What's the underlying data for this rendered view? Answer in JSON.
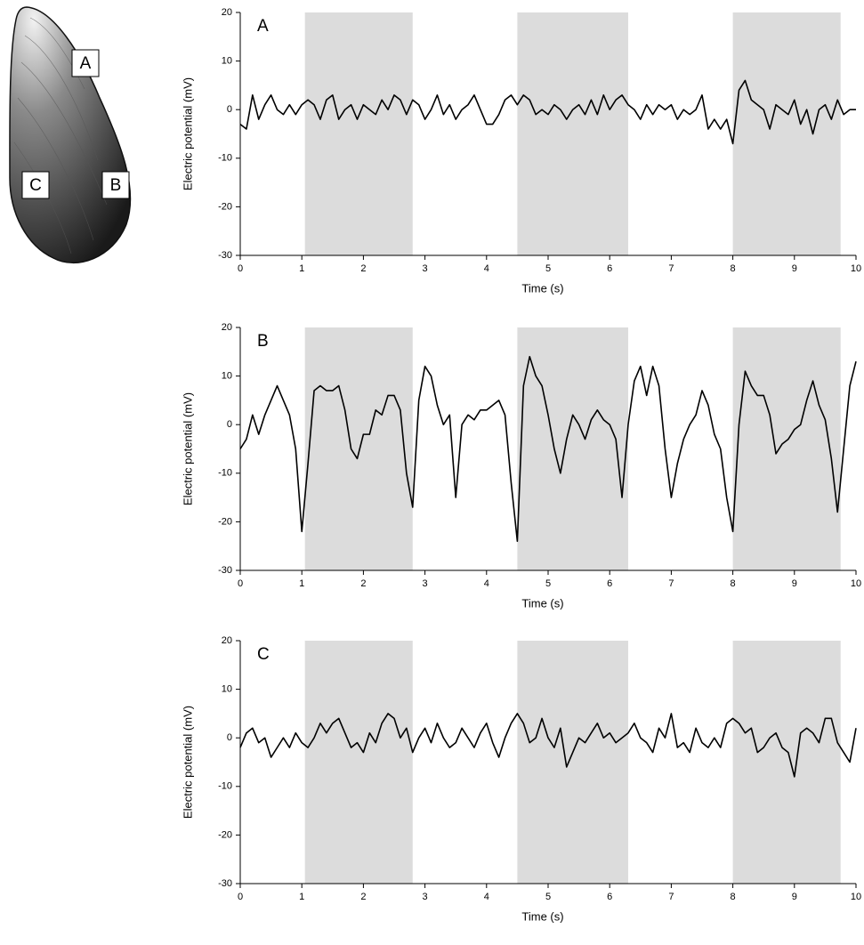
{
  "chart_data": [
    {
      "type": "line",
      "panel_label": "A",
      "xlabel": "Time (s)",
      "ylabel": "Electric potential (mV)",
      "color": "#000000",
      "shade_color": "#dcdcdc",
      "xlim": [
        0,
        10
      ],
      "ylim": [
        -30,
        20
      ],
      "xticks": [
        0,
        1,
        2,
        3,
        4,
        5,
        6,
        7,
        8,
        9,
        10
      ],
      "yticks": [
        -30,
        -20,
        -10,
        0,
        10,
        20
      ],
      "shaded_regions": [
        [
          1.05,
          2.8
        ],
        [
          4.5,
          6.3
        ],
        [
          8.0,
          9.75
        ]
      ],
      "x": [
        0,
        0.1,
        0.2,
        0.3,
        0.4,
        0.5,
        0.6,
        0.7,
        0.8,
        0.9,
        1,
        1.1,
        1.2,
        1.3,
        1.4,
        1.5,
        1.6,
        1.7,
        1.8,
        1.9,
        2,
        2.1,
        2.2,
        2.3,
        2.4,
        2.5,
        2.6,
        2.7,
        2.8,
        2.9,
        3,
        3.1,
        3.2,
        3.3,
        3.4,
        3.5,
        3.6,
        3.7,
        3.8,
        3.9,
        4,
        4.1,
        4.2,
        4.3,
        4.4,
        4.5,
        4.6,
        4.7,
        4.8,
        4.9,
        5,
        5.1,
        5.2,
        5.3,
        5.4,
        5.5,
        5.6,
        5.7,
        5.8,
        5.9,
        6,
        6.1,
        6.2,
        6.3,
        6.4,
        6.5,
        6.6,
        6.7,
        6.8,
        6.9,
        7,
        7.1,
        7.2,
        7.3,
        7.4,
        7.5,
        7.6,
        7.7,
        7.8,
        7.9,
        8,
        8.1,
        8.2,
        8.3,
        8.4,
        8.5,
        8.6,
        8.7,
        8.8,
        8.9,
        9,
        9.1,
        9.2,
        9.3,
        9.4,
        9.5,
        9.6,
        9.7,
        9.8,
        9.9,
        10
      ],
      "values": [
        -3,
        -4,
        3,
        -2,
        1,
        3,
        0,
        -1,
        1,
        -1,
        1,
        2,
        1,
        -2,
        2,
        3,
        -2,
        0,
        1,
        -2,
        1,
        0,
        -1,
        2,
        0,
        3,
        2,
        -1,
        2,
        1,
        -2,
        0,
        3,
        -1,
        1,
        -2,
        0,
        1,
        3,
        0,
        -3,
        -3,
        -1,
        2,
        3,
        1,
        3,
        2,
        -1,
        0,
        -1,
        1,
        0,
        -2,
        0,
        1,
        -1,
        2,
        -1,
        3,
        0,
        2,
        3,
        1,
        0,
        -2,
        1,
        -1,
        1,
        0,
        1,
        -2,
        0,
        -1,
        0,
        3,
        -4,
        -2,
        -4,
        -2,
        -7,
        4,
        6,
        2,
        1,
        0,
        -4,
        1,
        0,
        -1,
        2,
        -3,
        0,
        -5,
        0,
        1,
        -2,
        2,
        -1,
        0,
        0
      ]
    },
    {
      "type": "line",
      "panel_label": "B",
      "xlabel": "Time (s)",
      "ylabel": "Electric potential (mV)",
      "color": "#000000",
      "shade_color": "#dcdcdc",
      "xlim": [
        0,
        10
      ],
      "ylim": [
        -30,
        20
      ],
      "xticks": [
        0,
        1,
        2,
        3,
        4,
        5,
        6,
        7,
        8,
        9,
        10
      ],
      "yticks": [
        -30,
        -20,
        -10,
        0,
        10,
        20
      ],
      "shaded_regions": [
        [
          1.05,
          2.8
        ],
        [
          4.5,
          6.3
        ],
        [
          8.0,
          9.75
        ]
      ],
      "x": [
        0,
        0.1,
        0.2,
        0.3,
        0.4,
        0.5,
        0.6,
        0.7,
        0.8,
        0.9,
        1,
        1.1,
        1.2,
        1.3,
        1.4,
        1.5,
        1.6,
        1.7,
        1.8,
        1.9,
        2,
        2.1,
        2.2,
        2.3,
        2.4,
        2.5,
        2.6,
        2.7,
        2.8,
        2.9,
        3,
        3.1,
        3.2,
        3.3,
        3.4,
        3.5,
        3.6,
        3.7,
        3.8,
        3.9,
        4,
        4.1,
        4.2,
        4.3,
        4.4,
        4.5,
        4.6,
        4.7,
        4.8,
        4.9,
        5,
        5.1,
        5.2,
        5.3,
        5.4,
        5.5,
        5.6,
        5.7,
        5.8,
        5.9,
        6,
        6.1,
        6.2,
        6.3,
        6.4,
        6.5,
        6.6,
        6.7,
        6.8,
        6.9,
        7,
        7.1,
        7.2,
        7.3,
        7.4,
        7.5,
        7.6,
        7.7,
        7.8,
        7.9,
        8,
        8.1,
        8.2,
        8.3,
        8.4,
        8.5,
        8.6,
        8.7,
        8.8,
        8.9,
        9,
        9.1,
        9.2,
        9.3,
        9.4,
        9.5,
        9.6,
        9.7,
        9.8,
        9.9,
        10
      ],
      "values": [
        -5,
        -3,
        2,
        -2,
        2,
        5,
        8,
        5,
        2,
        -5,
        -22,
        -8,
        7,
        8,
        7,
        7,
        8,
        3,
        -5,
        -7,
        -2,
        -2,
        3,
        2,
        6,
        6,
        3,
        -10,
        -17,
        5,
        12,
        10,
        4,
        0,
        2,
        -15,
        0,
        2,
        1,
        3,
        3,
        4,
        5,
        2,
        -12,
        -24,
        8,
        14,
        10,
        8,
        2,
        -5,
        -10,
        -3,
        2,
        0,
        -3,
        1,
        3,
        1,
        0,
        -3,
        -15,
        0,
        9,
        12,
        6,
        12,
        8,
        -5,
        -15,
        -8,
        -3,
        0,
        2,
        7,
        4,
        -2,
        -5,
        -15,
        -22,
        0,
        11,
        8,
        6,
        6,
        2,
        -6,
        -4,
        -3,
        -1,
        0,
        5,
        9,
        4,
        1,
        -7,
        -18,
        -5,
        8,
        13
      ]
    },
    {
      "type": "line",
      "panel_label": "C",
      "xlabel": "Time (s)",
      "ylabel": "Electric potential (mV)",
      "color": "#000000",
      "shade_color": "#dcdcdc",
      "xlim": [
        0,
        10
      ],
      "ylim": [
        -30,
        20
      ],
      "xticks": [
        0,
        1,
        2,
        3,
        4,
        5,
        6,
        7,
        8,
        9,
        10
      ],
      "yticks": [
        -30,
        -20,
        -10,
        0,
        10,
        20
      ],
      "shaded_regions": [
        [
          1.05,
          2.8
        ],
        [
          4.5,
          6.3
        ],
        [
          8.0,
          9.75
        ]
      ],
      "x": [
        0,
        0.1,
        0.2,
        0.3,
        0.4,
        0.5,
        0.6,
        0.7,
        0.8,
        0.9,
        1,
        1.1,
        1.2,
        1.3,
        1.4,
        1.5,
        1.6,
        1.7,
        1.8,
        1.9,
        2,
        2.1,
        2.2,
        2.3,
        2.4,
        2.5,
        2.6,
        2.7,
        2.8,
        2.9,
        3,
        3.1,
        3.2,
        3.3,
        3.4,
        3.5,
        3.6,
        3.7,
        3.8,
        3.9,
        4,
        4.1,
        4.2,
        4.3,
        4.4,
        4.5,
        4.6,
        4.7,
        4.8,
        4.9,
        5,
        5.1,
        5.2,
        5.3,
        5.4,
        5.5,
        5.6,
        5.7,
        5.8,
        5.9,
        6,
        6.1,
        6.2,
        6.3,
        6.4,
        6.5,
        6.6,
        6.7,
        6.8,
        6.9,
        7,
        7.1,
        7.2,
        7.3,
        7.4,
        7.5,
        7.6,
        7.7,
        7.8,
        7.9,
        8,
        8.1,
        8.2,
        8.3,
        8.4,
        8.5,
        8.6,
        8.7,
        8.8,
        8.9,
        9,
        9.1,
        9.2,
        9.3,
        9.4,
        9.5,
        9.6,
        9.7,
        9.8,
        9.9,
        10
      ],
      "values": [
        -2,
        1,
        2,
        -1,
        0,
        -4,
        -2,
        0,
        -2,
        1,
        -1,
        -2,
        0,
        3,
        1,
        3,
        4,
        1,
        -2,
        -1,
        -3,
        1,
        -1,
        3,
        5,
        4,
        0,
        2,
        -3,
        0,
        2,
        -1,
        3,
        0,
        -2,
        -1,
        2,
        0,
        -2,
        1,
        3,
        -1,
        -4,
        0,
        3,
        5,
        3,
        -1,
        0,
        4,
        0,
        -2,
        2,
        -6,
        -3,
        0,
        -1,
        1,
        3,
        0,
        1,
        -1,
        0,
        1,
        3,
        0,
        -1,
        -3,
        2,
        0,
        5,
        -2,
        -1,
        -3,
        2,
        -1,
        -2,
        0,
        -2,
        3,
        4,
        3,
        1,
        2,
        -3,
        -2,
        0,
        1,
        -2,
        -3,
        -8,
        1,
        2,
        1,
        -1,
        4,
        4,
        -1,
        -3,
        -5,
        2
      ]
    }
  ],
  "illustration": {
    "labels": [
      "A",
      "B",
      "C"
    ]
  }
}
